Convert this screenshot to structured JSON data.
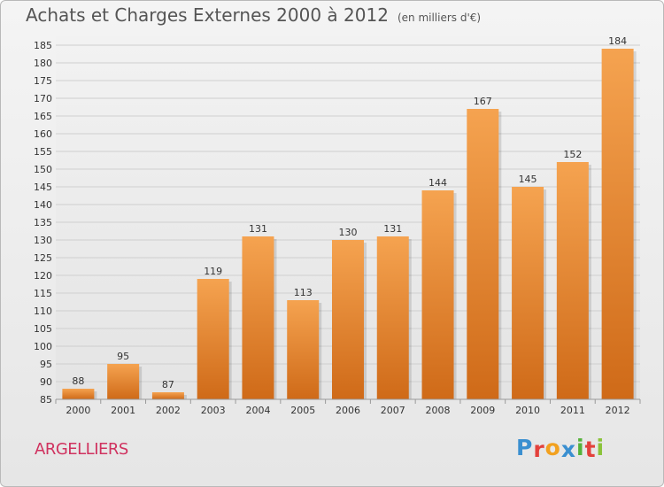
{
  "title": "Achats et Charges Externes 2000 à 2012",
  "subtitle": "(en milliers d'€)",
  "city": "ARGELLIERS",
  "logo": {
    "letters": [
      "P",
      "r",
      "o",
      "x",
      "i",
      "t",
      "i"
    ],
    "colors": [
      "#3a8fd0",
      "#e3413c",
      "#f2a11f",
      "#3a8fd0",
      "#55b23a",
      "#e3413c",
      "#8bc33a"
    ]
  },
  "colors": {
    "bar_top": "#f5a350",
    "bar_bottom": "#cf6a18",
    "grid": "#cfcfcf",
    "axis_text": "#333333"
  },
  "chart_data": {
    "type": "bar",
    "title": "Achats et Charges Externes 2000 à 2012",
    "subtitle": "(en milliers d'€)",
    "categories": [
      "2000",
      "2001",
      "2002",
      "2003",
      "2004",
      "2005",
      "2006",
      "2007",
      "2008",
      "2009",
      "2010",
      "2011",
      "2012"
    ],
    "values": [
      88,
      95,
      87,
      119,
      131,
      113,
      130,
      131,
      144,
      167,
      145,
      152,
      184
    ],
    "ylim": [
      85,
      185
    ],
    "yticks": [
      85,
      90,
      95,
      100,
      105,
      110,
      115,
      120,
      125,
      130,
      135,
      140,
      145,
      150,
      155,
      160,
      165,
      170,
      175,
      180,
      185
    ],
    "grid": true,
    "xlabel": "",
    "ylabel": ""
  }
}
